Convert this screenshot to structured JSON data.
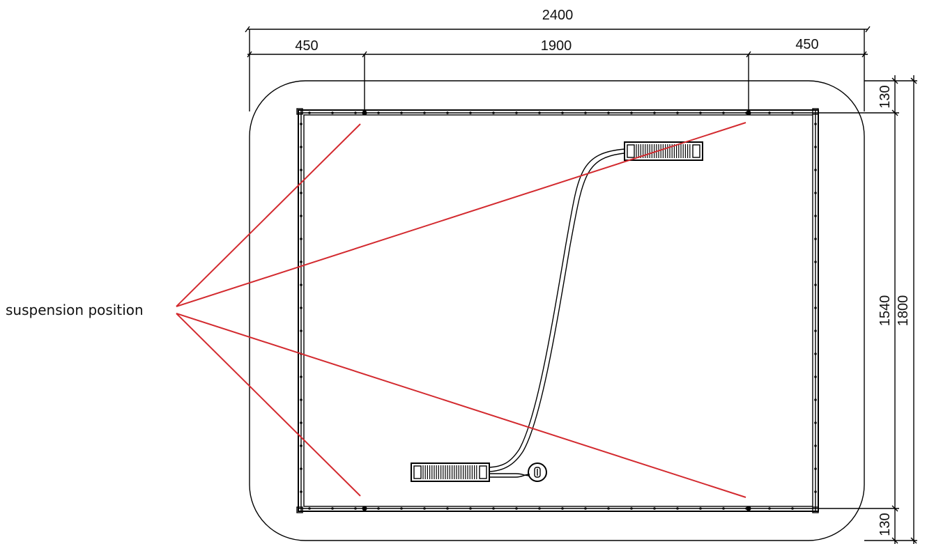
{
  "dimensions": {
    "overall_width": "2400",
    "left_offset": "450",
    "center_span": "1900",
    "right_offset": "450",
    "top_margin": "130",
    "bottom_margin": "130",
    "inner_height": "1540",
    "overall_height": "1800"
  },
  "annotation": {
    "label": "suspension position",
    "leader_color": "#d32a2f"
  },
  "colors": {
    "linework": "#000000",
    "background": "#ffffff"
  }
}
